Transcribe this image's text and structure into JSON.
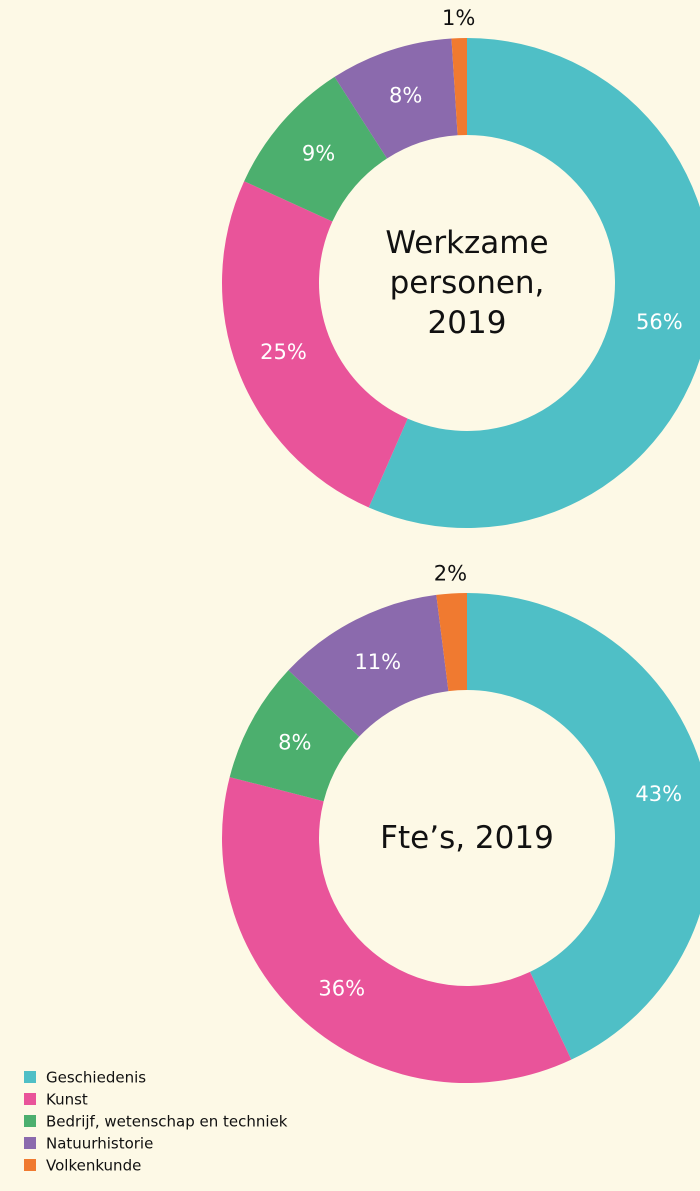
{
  "chart_data": [
    {
      "type": "pie",
      "donut": true,
      "title": "Werkzame personen, 2019",
      "categories": [
        "Geschiedenis",
        "Kunst",
        "Bedrijf, wetenschap en techniek",
        "Natuurhistorie",
        "Volkenkunde"
      ],
      "values": [
        56,
        25,
        9,
        8,
        1
      ],
      "value_labels": [
        "56%",
        "25%",
        "9%",
        "8%",
        "1%"
      ],
      "colors": [
        "#4fbfc6",
        "#e9549a",
        "#4caf6e",
        "#8b6aad",
        "#f07a30"
      ],
      "legend": "bottom-left"
    },
    {
      "type": "pie",
      "donut": true,
      "title": "Fte’s, 2019",
      "categories": [
        "Geschiedenis",
        "Kunst",
        "Bedrijf, wetenschap en techniek",
        "Natuurhistorie",
        "Volkenkunde"
      ],
      "values": [
        43,
        36,
        8,
        11,
        2
      ],
      "value_labels": [
        "43%",
        "36%",
        "8%",
        "11%",
        "2%"
      ],
      "colors": [
        "#4fbfc6",
        "#e9549a",
        "#4caf6e",
        "#8b6aad",
        "#f07a30"
      ]
    }
  ]
}
